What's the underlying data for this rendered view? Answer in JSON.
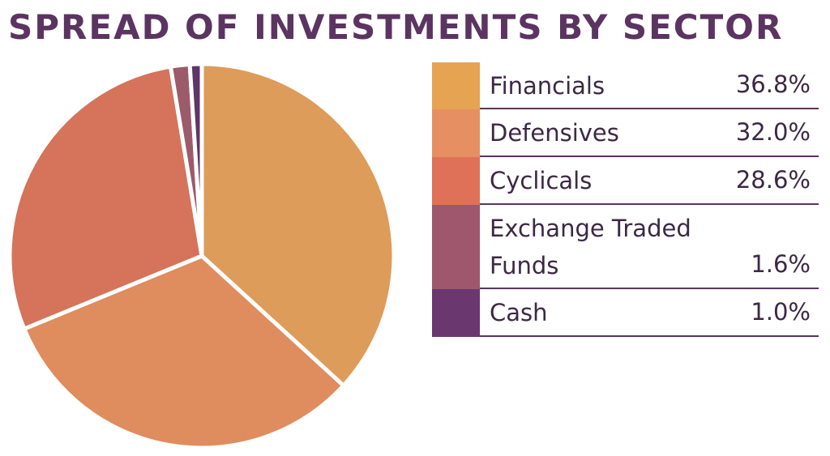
{
  "chart_data": {
    "type": "pie",
    "title": "SPREAD OF INVESTMENTS BY SECTOR",
    "categories": [
      "Financials",
      "Defensives",
      "Cyclicals",
      "Exchange Traded Funds",
      "Cash"
    ],
    "values": [
      36.8,
      32.0,
      28.6,
      1.6,
      1.0
    ],
    "value_labels": [
      "36.8%",
      "32.0%",
      "28.6%",
      "1.6%",
      "1.0%"
    ],
    "legend_position": "right",
    "colors": {
      "slices": [
        "#dd9c59",
        "#df8c5e",
        "#d5735b",
        "#9c5b6b",
        "#5e3668"
      ],
      "swatches": [
        "#e6a352",
        "#e58f62",
        "#df7158",
        "#9e576c",
        "#6a386f"
      ],
      "title": "#5b3461",
      "rule": "#5b3461"
    }
  }
}
